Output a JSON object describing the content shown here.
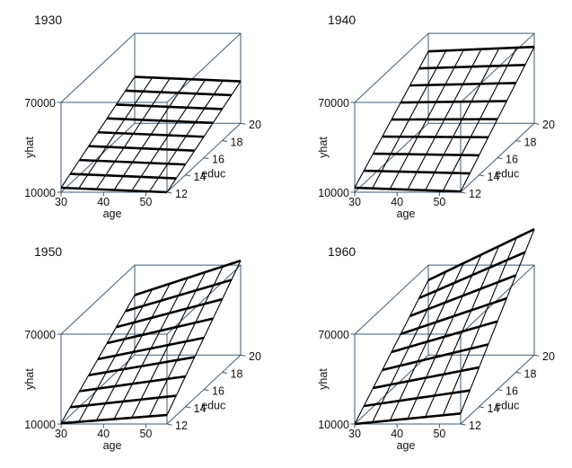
{
  "figure": {
    "axis_color": "#3d5a73",
    "grid_color": "#000000"
  },
  "chart_data": [
    {
      "type": "surface3d",
      "title": "1930",
      "xlabel": "age",
      "ylabel": "educ",
      "zlabel": "yhat",
      "xlim": [
        30,
        55
      ],
      "ylim": [
        12,
        20
      ],
      "zlim": [
        10000,
        70000
      ],
      "xticks": [
        "30",
        "40",
        "50"
      ],
      "yticks": [
        "12",
        "14",
        "16",
        "18",
        "20"
      ],
      "zticks": [
        "10000",
        "70000"
      ],
      "corners": {
        "age30_educ12": 13000,
        "age55_educ12": 10000,
        "age30_educ20": 41000,
        "age55_educ20": 38000
      }
    },
    {
      "type": "surface3d",
      "title": "1940",
      "xlabel": "age",
      "ylabel": "educ",
      "zlabel": "yhat",
      "xlim": [
        30,
        55
      ],
      "ylim": [
        12,
        20
      ],
      "zlim": [
        10000,
        70000
      ],
      "xticks": [
        "30",
        "40",
        "50"
      ],
      "yticks": [
        "12",
        "14",
        "16",
        "18",
        "20"
      ],
      "zticks": [
        "10000",
        "70000"
      ],
      "corners": {
        "age30_educ12": 13000,
        "age55_educ12": 10500,
        "age30_educ20": 58000,
        "age55_educ20": 61000
      }
    },
    {
      "type": "surface3d",
      "title": "1950",
      "xlabel": "age",
      "ylabel": "educ",
      "zlabel": "yhat",
      "xlim": [
        30,
        55
      ],
      "ylim": [
        12,
        20
      ],
      "zlim": [
        10000,
        70000
      ],
      "xticks": [
        "30",
        "40",
        "50"
      ],
      "yticks": [
        "12",
        "14",
        "16",
        "18",
        "20"
      ],
      "zticks": [
        "10000",
        "70000"
      ],
      "corners": {
        "age30_educ12": 10500,
        "age55_educ12": 16000,
        "age30_educ20": 50000,
        "age55_educ20": 73000
      }
    },
    {
      "type": "surface3d",
      "title": "1960",
      "xlabel": "age",
      "ylabel": "educ",
      "zlabel": "yhat",
      "xlim": [
        30,
        55
      ],
      "ylim": [
        12,
        20
      ],
      "zlim": [
        10000,
        70000
      ],
      "xticks": [
        "30",
        "40",
        "50"
      ],
      "yticks": [
        "12",
        "14",
        "16",
        "18",
        "20"
      ],
      "zticks": [
        "10000",
        "70000"
      ],
      "corners": {
        "age30_educ12": 10000,
        "age55_educ12": 17000,
        "age30_educ20": 60000,
        "age55_educ20": 94000
      }
    }
  ]
}
